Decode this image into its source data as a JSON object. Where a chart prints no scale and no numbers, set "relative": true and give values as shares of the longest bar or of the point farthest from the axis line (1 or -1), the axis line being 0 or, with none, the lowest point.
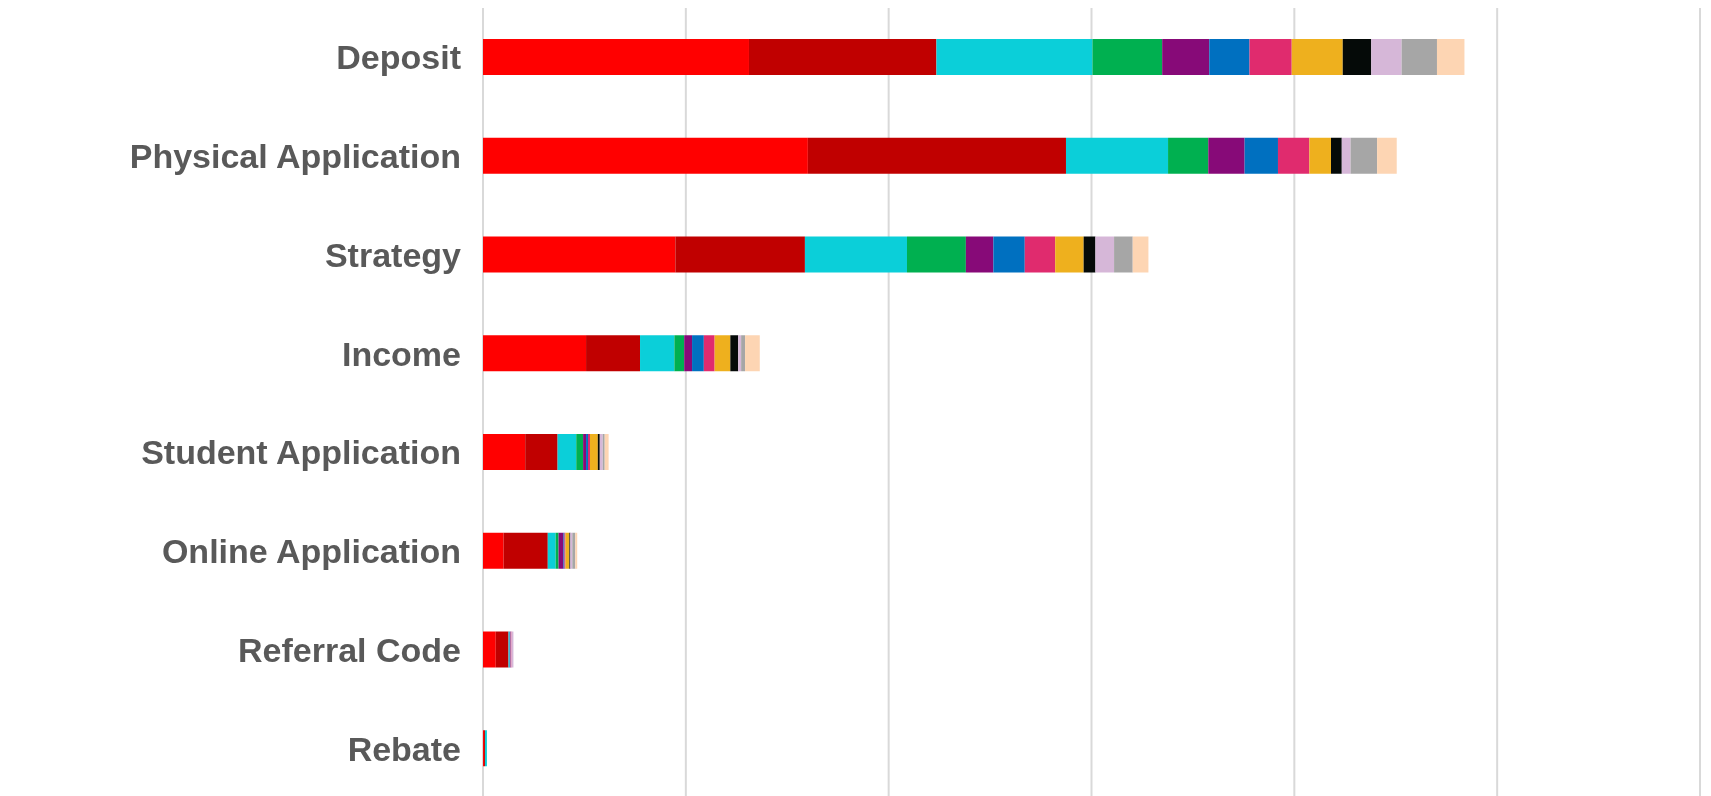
{
  "chart_data": {
    "type": "bar",
    "orientation": "horizontal",
    "stacked": true,
    "relative": true,
    "grid": "x",
    "legend": false,
    "categories": [
      "Deposit",
      "Physical Application",
      "Strategy",
      "Income",
      "Student Application",
      "Online Application",
      "Referral Code",
      "Rebate"
    ],
    "series": [
      {
        "color": "#ff0000",
        "values": [
          0.271,
          0.331,
          0.196,
          0.105,
          0.043,
          0.021,
          0.013,
          0.001
        ]
      },
      {
        "color": "#c00000",
        "values": [
          0.191,
          0.263,
          0.132,
          0.055,
          0.033,
          0.045,
          0.013,
          0.001
        ]
      },
      {
        "color": "#0bcfd9",
        "values": [
          0.159,
          0.104,
          0.104,
          0.035,
          0.019,
          0.008,
          0.001,
          0.002
        ]
      },
      {
        "color": "#00b050",
        "values": [
          0.071,
          0.041,
          0.06,
          0.01,
          0.007,
          0.003,
          null,
          null
        ]
      },
      {
        "color": "#870a78",
        "values": [
          0.048,
          0.037,
          0.028,
          0.008,
          0.003,
          0.005,
          null,
          null
        ]
      },
      {
        "color": "#0070c0",
        "values": [
          0.041,
          0.034,
          0.032,
          0.012,
          0.002,
          0.001,
          0.001,
          null
        ]
      },
      {
        "color": "#e02b6e",
        "values": [
          0.043,
          0.032,
          0.031,
          0.011,
          0.002,
          0.001,
          0.001,
          null
        ]
      },
      {
        "color": "#eeb01e",
        "values": [
          0.052,
          0.022,
          0.029,
          0.016,
          0.008,
          0.004,
          null,
          null
        ]
      },
      {
        "color": "#050a08",
        "values": [
          0.029,
          0.011,
          0.012,
          0.008,
          0.002,
          0.001,
          null,
          null
        ]
      },
      {
        "color": "#d6b7d8",
        "values": [
          0.031,
          0.009,
          0.019,
          0.003,
          0.003,
          0.002,
          0.002,
          null
        ]
      },
      {
        "color": "#a6a6a6",
        "values": [
          0.036,
          0.027,
          0.019,
          0.004,
          0.002,
          0.003,
          null,
          null
        ]
      },
      {
        "color": "#fdd5b3",
        "values": [
          0.028,
          0.02,
          0.016,
          0.015,
          0.004,
          0.002,
          null,
          null
        ]
      }
    ]
  }
}
